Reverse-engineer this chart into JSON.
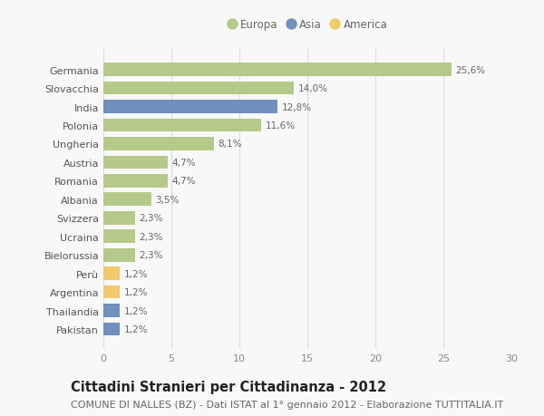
{
  "categories": [
    "Germania",
    "Slovacchia",
    "India",
    "Polonia",
    "Ungheria",
    "Austria",
    "Romania",
    "Albania",
    "Svizzera",
    "Ucraina",
    "Bielorussia",
    "Perù",
    "Argentina",
    "Thailandia",
    "Pakistan"
  ],
  "values": [
    25.6,
    14.0,
    12.8,
    11.6,
    8.1,
    4.7,
    4.7,
    3.5,
    2.3,
    2.3,
    2.3,
    1.2,
    1.2,
    1.2,
    1.2
  ],
  "labels": [
    "25,6%",
    "14,0%",
    "12,8%",
    "11,6%",
    "8,1%",
    "4,7%",
    "4,7%",
    "3,5%",
    "2,3%",
    "2,3%",
    "2,3%",
    "1,2%",
    "1,2%",
    "1,2%",
    "1,2%"
  ],
  "continents": [
    "Europa",
    "Europa",
    "Asia",
    "Europa",
    "Europa",
    "Europa",
    "Europa",
    "Europa",
    "Europa",
    "Europa",
    "Europa",
    "America",
    "America",
    "Asia",
    "Asia"
  ],
  "colors": {
    "Europa": "#b5c98a",
    "Asia": "#7090be",
    "America": "#f0c96a"
  },
  "legend_items": [
    "Europa",
    "Asia",
    "America"
  ],
  "legend_colors": [
    "#b5c98a",
    "#7090be",
    "#f0c96a"
  ],
  "title": "Cittadini Stranieri per Cittadinanza - 2012",
  "subtitle": "COMUNE DI NALLES (BZ) - Dati ISTAT al 1° gennaio 2012 - Elaborazione TUTTITALIA.IT",
  "xlim": [
    0,
    30
  ],
  "xticks": [
    0,
    5,
    10,
    15,
    20,
    25,
    30
  ],
  "bg_color": "#f8f8f8",
  "grid_color": "#dddddd",
  "bar_height": 0.72,
  "title_fontsize": 10.5,
  "subtitle_fontsize": 8,
  "label_fontsize": 7.5,
  "tick_fontsize": 8,
  "legend_fontsize": 8.5
}
